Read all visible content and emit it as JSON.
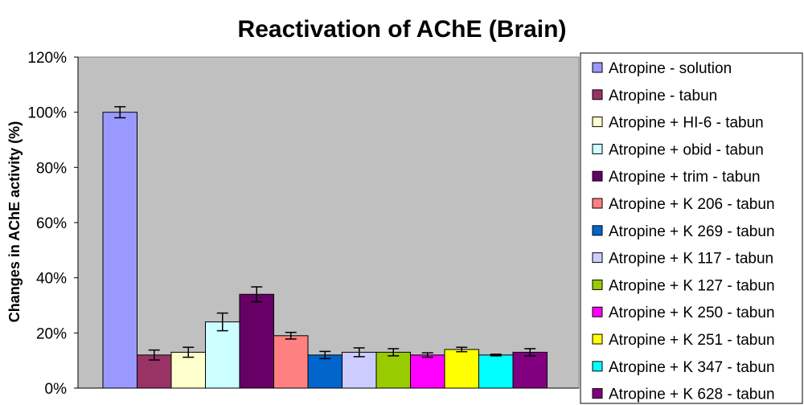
{
  "chart_data": {
    "type": "bar",
    "title": "Reactivation of AChE (Brain)",
    "xlabel": "",
    "ylabel": "Changes in AChE activity (%)",
    "ylim": [
      0,
      120
    ],
    "yticks": [
      "0%",
      "20%",
      "40%",
      "60%",
      "80%",
      "100%",
      "120%"
    ],
    "grid": false,
    "legend_position": "right",
    "plot_background": "#c0c0c0",
    "series": [
      {
        "name": "Atropine - solution",
        "value": 100,
        "error": 2,
        "color": "#9999ff"
      },
      {
        "name": "Atropine - tabun",
        "value": 12,
        "error": 1.8,
        "color": "#993366"
      },
      {
        "name": "Atropine + HI-6 - tabun",
        "value": 13,
        "error": 1.8,
        "color": "#ffffcc"
      },
      {
        "name": "Atropine + obid - tabun",
        "value": 24,
        "error": 3.2,
        "color": "#ccffff"
      },
      {
        "name": "Atropine + trim - tabun",
        "value": 34,
        "error": 2.7,
        "color": "#660066"
      },
      {
        "name": "Atropine + K 206 - tabun",
        "value": 19,
        "error": 1.2,
        "color": "#ff8080"
      },
      {
        "name": "Atropine + K 269 - tabun",
        "value": 12,
        "error": 1.3,
        "color": "#0066cc"
      },
      {
        "name": "Atropine + K 117 - tabun",
        "value": 13,
        "error": 1.6,
        "color": "#ccccff"
      },
      {
        "name": "Atropine + K 127 - tabun",
        "value": 13,
        "error": 1.3,
        "color": "#99cc00"
      },
      {
        "name": "Atropine + K 250 - tabun",
        "value": 12,
        "error": 0.8,
        "color": "#ff00ff"
      },
      {
        "name": "Atropine + K 251 - tabun",
        "value": 14,
        "error": 0.8,
        "color": "#ffff00"
      },
      {
        "name": "Atropine + K 347 - tabun",
        "value": 12,
        "error": 0.3,
        "color": "#00ffff"
      },
      {
        "name": "Atropine + K 628 - tabun",
        "value": 13,
        "error": 1.3,
        "color": "#800080"
      }
    ]
  }
}
